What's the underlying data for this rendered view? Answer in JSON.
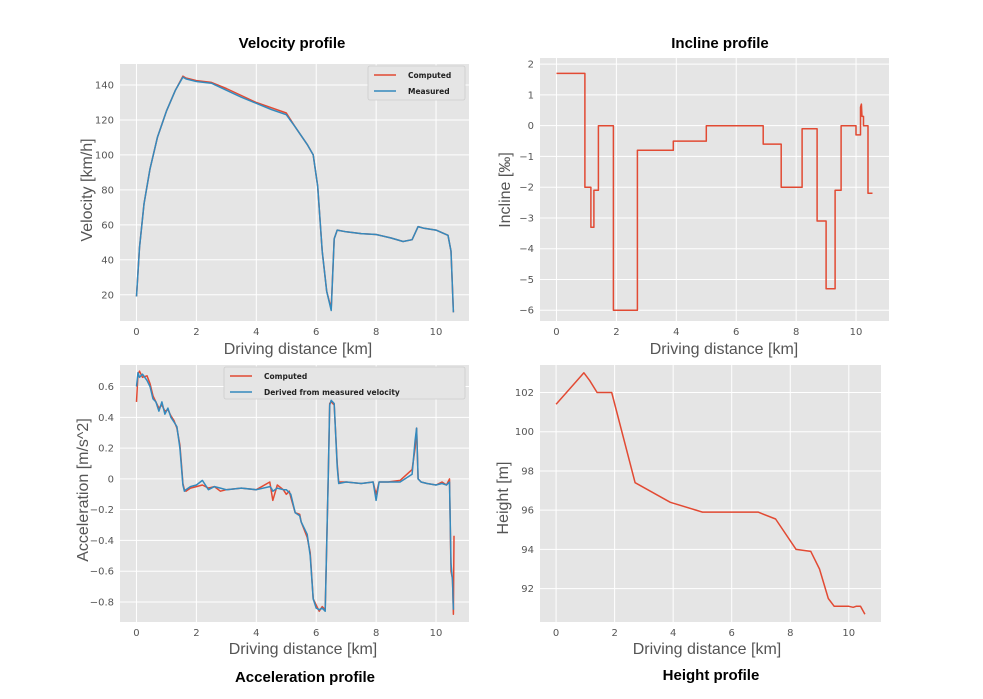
{
  "colors": {
    "computed": "#E24A33",
    "measured": "#348ABD",
    "panel_bg": "#E5E5E5",
    "grid": "#FFFFFF"
  },
  "chart_data": [
    {
      "id": "velocity",
      "type": "line",
      "title": "Velocity profile",
      "xlabel": "Driving distance  [km]",
      "ylabel": "Velocity   [km/h]",
      "xlim": [
        -0.55,
        11.1
      ],
      "ylim": [
        5,
        152
      ],
      "xticks": [
        0,
        2,
        4,
        6,
        8,
        10
      ],
      "yticks": [
        20,
        40,
        60,
        80,
        100,
        120,
        140
      ],
      "legend": "top-right",
      "series": [
        {
          "name": "Computed",
          "color": "#E24A33",
          "x": [
            0,
            0.1,
            0.25,
            0.45,
            0.7,
            1.0,
            1.3,
            1.55,
            1.65,
            2.0,
            2.5,
            3.0,
            3.5,
            4.0,
            4.5,
            5.0,
            5.3,
            5.5,
            5.7,
            5.9,
            6.05,
            6.2,
            6.35,
            6.5,
            6.6,
            6.7,
            7.0,
            7.5,
            8.0,
            8.5,
            8.9,
            9.2,
            9.4,
            9.6,
            10.0,
            10.4,
            10.5,
            10.58
          ],
          "values": [
            19,
            47,
            72,
            92,
            110,
            125,
            137,
            145,
            144,
            142.5,
            141.5,
            138,
            134,
            130,
            127,
            124,
            116,
            111,
            106,
            100,
            82,
            45,
            22,
            12,
            52,
            57,
            56,
            55,
            54.5,
            52.5,
            50.5,
            51.5,
            59,
            58,
            57,
            54,
            45,
            10
          ]
        },
        {
          "name": "Measured",
          "color": "#348ABD",
          "x": [
            0,
            0.1,
            0.25,
            0.45,
            0.7,
            1.0,
            1.3,
            1.55,
            1.65,
            2.0,
            2.5,
            3.0,
            3.5,
            4.0,
            4.5,
            5.0,
            5.3,
            5.5,
            5.7,
            5.9,
            6.05,
            6.2,
            6.35,
            6.5,
            6.6,
            6.7,
            7.0,
            7.5,
            8.0,
            8.5,
            8.9,
            9.2,
            9.4,
            9.6,
            10.0,
            10.4,
            10.5,
            10.58
          ],
          "values": [
            19,
            47,
            72,
            92,
            110,
            125,
            137,
            144.5,
            143.5,
            142,
            141,
            137,
            133,
            129.5,
            126,
            123,
            116,
            111,
            106,
            100,
            82,
            45,
            22,
            11,
            52,
            57,
            56,
            55,
            54.5,
            52.5,
            50.5,
            51.5,
            59,
            58,
            57,
            54,
            45,
            10
          ]
        }
      ]
    },
    {
      "id": "incline",
      "type": "line",
      "title": "Incline profile",
      "xlabel": "Driving distance  [km]",
      "ylabel": "Incline   [‰]",
      "xlim": [
        -0.55,
        11.1
      ],
      "ylim": [
        -6.35,
        2.2
      ],
      "xticks": [
        0,
        2,
        4,
        6,
        8,
        10
      ],
      "yticks": [
        2,
        1,
        0,
        -1,
        -2,
        -3,
        -4,
        -5,
        -6
      ],
      "series": [
        {
          "name": "Incline",
          "color": "#E24A33",
          "x": [
            0,
            0.95,
            0.95,
            1.15,
            1.15,
            1.25,
            1.25,
            1.4,
            1.4,
            1.9,
            1.9,
            2.7,
            2.7,
            3.9,
            3.9,
            5.0,
            5.0,
            6.9,
            6.9,
            7.5,
            7.5,
            8.2,
            8.2,
            8.7,
            8.7,
            9.0,
            9.0,
            9.3,
            9.3,
            9.5,
            9.5,
            10.0,
            10.0,
            10.15,
            10.15,
            10.18,
            10.2,
            10.25,
            10.25,
            10.4,
            10.4,
            10.55
          ],
          "values": [
            1.7,
            1.7,
            -2.0,
            -2.0,
            -3.3,
            -3.3,
            -2.1,
            -2.1,
            0.0,
            0.0,
            -6.0,
            -6.0,
            -0.8,
            -0.8,
            -0.5,
            -0.5,
            0.0,
            0.0,
            -0.6,
            -0.6,
            -2.0,
            -2.0,
            -0.1,
            -0.1,
            -3.1,
            -3.1,
            -5.3,
            -5.3,
            -2.1,
            -2.1,
            0.0,
            0.0,
            -0.3,
            -0.3,
            0.6,
            0.7,
            0.3,
            0.3,
            0.0,
            0.0,
            -2.2,
            -2.2
          ]
        }
      ]
    },
    {
      "id": "acceleration",
      "type": "line",
      "title": "Acceleration profile",
      "xlabel": "Driving distance  [km]",
      "ylabel": "Acceleration   [m/s^2]",
      "xlim": [
        -0.55,
        11.1
      ],
      "ylim": [
        -0.93,
        0.74
      ],
      "xticks": [
        0,
        2,
        4,
        6,
        8,
        10
      ],
      "yticks": [
        0.6,
        0.4,
        0.2,
        0.0,
        -0.2,
        -0.4,
        -0.6,
        -0.8
      ],
      "legend": "top-center",
      "series": [
        {
          "name": "Computed",
          "color": "#E24A33",
          "x": [
            0,
            0.05,
            0.1,
            0.2,
            0.35,
            0.45,
            0.55,
            0.65,
            0.75,
            0.85,
            0.95,
            1.05,
            1.15,
            1.25,
            1.35,
            1.45,
            1.5,
            1.55,
            1.6,
            1.65,
            1.8,
            2.0,
            2.2,
            2.4,
            2.6,
            2.8,
            3.0,
            3.5,
            4.0,
            4.45,
            4.5,
            4.55,
            4.7,
            4.9,
            5.0,
            5.1,
            5.15,
            5.3,
            5.45,
            5.5,
            5.7,
            5.8,
            5.9,
            6.0,
            6.1,
            6.2,
            6.3,
            6.4,
            6.45,
            6.5,
            6.6,
            6.7,
            6.75,
            7.0,
            7.5,
            7.9,
            8.0,
            8.1,
            8.4,
            8.8,
            9.2,
            9.3,
            9.35,
            9.4,
            9.5,
            9.7,
            10.0,
            10.2,
            10.35,
            10.45,
            10.5,
            10.55,
            10.58,
            10.6
          ],
          "values": [
            0.5,
            0.68,
            0.7,
            0.66,
            0.67,
            0.62,
            0.54,
            0.5,
            0.46,
            0.48,
            0.44,
            0.45,
            0.41,
            0.38,
            0.33,
            0.22,
            0.1,
            -0.03,
            -0.07,
            -0.08,
            -0.06,
            -0.05,
            -0.04,
            -0.06,
            -0.05,
            -0.08,
            -0.07,
            -0.06,
            -0.07,
            -0.02,
            -0.08,
            -0.14,
            -0.04,
            -0.07,
            -0.1,
            -0.08,
            -0.12,
            -0.22,
            -0.23,
            -0.28,
            -0.38,
            -0.48,
            -0.78,
            -0.82,
            -0.86,
            -0.83,
            -0.85,
            0.0,
            0.49,
            0.5,
            0.48,
            0.1,
            -0.02,
            -0.02,
            -0.03,
            -0.02,
            -0.1,
            -0.02,
            -0.02,
            -0.01,
            0.06,
            0.2,
            0.33,
            0.0,
            -0.02,
            -0.03,
            -0.04,
            -0.02,
            -0.04,
            0.0,
            -0.6,
            -0.65,
            -0.88,
            -0.37
          ]
        },
        {
          "name": "Derived from measured velocity",
          "color": "#348ABD",
          "x": [
            0,
            0.05,
            0.1,
            0.2,
            0.35,
            0.45,
            0.55,
            0.65,
            0.75,
            0.85,
            0.95,
            1.05,
            1.15,
            1.25,
            1.35,
            1.45,
            1.5,
            1.55,
            1.6,
            1.65,
            1.8,
            2.0,
            2.2,
            2.4,
            2.6,
            2.8,
            3.0,
            3.5,
            4.0,
            4.45,
            4.5,
            4.55,
            4.7,
            4.9,
            5.0,
            5.1,
            5.15,
            5.3,
            5.45,
            5.5,
            5.7,
            5.8,
            5.9,
            6.0,
            6.1,
            6.2,
            6.3,
            6.4,
            6.45,
            6.5,
            6.6,
            6.7,
            6.75,
            7.0,
            7.5,
            7.9,
            8.0,
            8.1,
            8.4,
            8.8,
            9.2,
            9.3,
            9.35,
            9.4,
            9.5,
            9.7,
            10.0,
            10.2,
            10.35,
            10.45,
            10.5,
            10.55,
            10.58
          ],
          "values": [
            0.6,
            0.69,
            0.66,
            0.68,
            0.64,
            0.6,
            0.52,
            0.5,
            0.44,
            0.5,
            0.42,
            0.46,
            0.4,
            0.37,
            0.34,
            0.2,
            0.08,
            -0.04,
            -0.08,
            -0.07,
            -0.05,
            -0.04,
            -0.01,
            -0.07,
            -0.05,
            -0.06,
            -0.07,
            -0.06,
            -0.07,
            -0.05,
            -0.06,
            -0.08,
            -0.06,
            -0.07,
            -0.07,
            -0.09,
            -0.1,
            -0.22,
            -0.24,
            -0.28,
            -0.36,
            -0.5,
            -0.78,
            -0.84,
            -0.85,
            -0.84,
            -0.86,
            0.0,
            0.48,
            0.51,
            0.49,
            0.08,
            -0.03,
            -0.02,
            -0.03,
            -0.02,
            -0.14,
            -0.02,
            -0.02,
            -0.02,
            0.03,
            0.25,
            0.33,
            0.0,
            -0.02,
            -0.03,
            -0.04,
            -0.03,
            -0.04,
            -0.02,
            -0.55,
            -0.66,
            -0.85
          ]
        }
      ]
    },
    {
      "id": "height",
      "type": "line",
      "title": "Height profile",
      "xlabel": "Driving distance  [km]",
      "ylabel": "Height   [m]",
      "xlim": [
        -0.55,
        11.1
      ],
      "ylim": [
        90.3,
        103.4
      ],
      "xticks": [
        0,
        2,
        4,
        6,
        8,
        10
      ],
      "yticks": [
        92,
        94,
        96,
        98,
        100,
        102
      ],
      "series": [
        {
          "name": "Height",
          "color": "#E24A33",
          "x": [
            0,
            0.95,
            1.15,
            1.4,
            1.9,
            2.7,
            3.9,
            5.0,
            6.9,
            7.5,
            8.2,
            8.7,
            9.0,
            9.3,
            9.5,
            10.0,
            10.15,
            10.25,
            10.4,
            10.55
          ],
          "values": [
            101.4,
            103.0,
            102.6,
            102.0,
            102.0,
            97.4,
            96.4,
            95.9,
            95.9,
            95.55,
            94.0,
            93.9,
            93.0,
            91.5,
            91.1,
            91.1,
            91.05,
            91.1,
            91.1,
            90.7
          ]
        }
      ]
    }
  ]
}
